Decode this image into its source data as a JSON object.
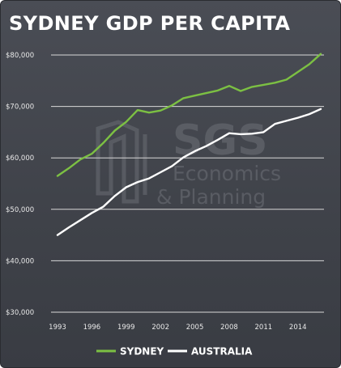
{
  "chart_data": {
    "type": "line",
    "title": "SYDNEY GDP PER CAPITA",
    "x": [
      1993,
      1994,
      1995,
      1996,
      1997,
      1998,
      1999,
      2000,
      2001,
      2002,
      2003,
      2004,
      2005,
      2006,
      2007,
      2008,
      2009,
      2010,
      2011,
      2012,
      2013,
      2014,
      2015,
      2016
    ],
    "x_ticks": [
      "1993",
      "1996",
      "1999",
      "2002",
      "2005",
      "2008",
      "2011",
      "2014"
    ],
    "y_ticks": [
      "$30,000",
      "$40,000",
      "$50,000",
      "$60,000",
      "$70,000",
      "$80,000"
    ],
    "ylim": [
      30000,
      80000
    ],
    "grid": true,
    "legend_position": "bottom",
    "series": [
      {
        "name": "SYDNEY",
        "color": "#7cc043",
        "values": [
          56500,
          58000,
          59700,
          60800,
          62900,
          65300,
          67000,
          69300,
          68800,
          69200,
          70200,
          71600,
          72100,
          72600,
          73100,
          74000,
          73000,
          73800,
          74200,
          74600,
          75200,
          76700,
          78200,
          80200
        ]
      },
      {
        "name": "AUSTRALIA",
        "color": "#ffffff",
        "values": [
          45000,
          46500,
          47900,
          49300,
          50500,
          52600,
          54300,
          55300,
          56000,
          57200,
          58400,
          60100,
          61300,
          62300,
          63500,
          64800,
          64600,
          64700,
          65000,
          66600,
          67200,
          67800,
          68500,
          69500
        ]
      }
    ]
  },
  "watermark": {
    "line1": "SGS",
    "line2": "Economics",
    "line3": "& Planning"
  }
}
